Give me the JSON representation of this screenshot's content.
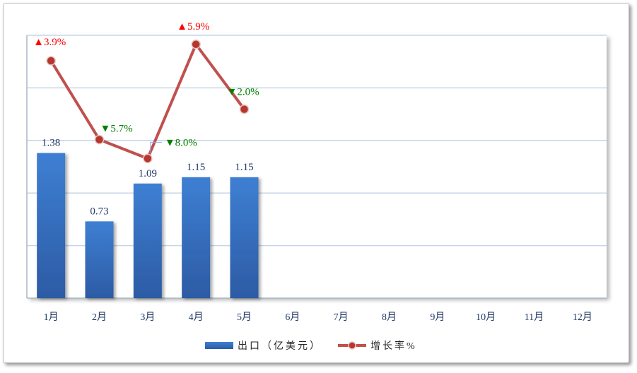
{
  "chart_data": {
    "type": "bar",
    "categories": [
      "1月",
      "2月",
      "3月",
      "4月",
      "5月",
      "6月",
      "7月",
      "8月",
      "9月",
      "10月",
      "11月",
      "12月"
    ],
    "series": [
      {
        "name": "出口（亿美元）",
        "values": [
          1.38,
          0.73,
          1.09,
          1.15,
          1.15,
          null,
          null,
          null,
          null,
          null,
          null,
          null
        ],
        "labels": [
          "1.38",
          "0.73",
          "1.09",
          "1.15",
          "1.15"
        ],
        "color": "#3a74c6"
      },
      {
        "name": "增长率%",
        "type": "line",
        "secondary_axis": true,
        "values": [
          3.9,
          -5.7,
          -8.0,
          5.9,
          -2.0,
          null,
          null,
          null,
          null,
          null,
          null,
          null
        ],
        "labels": [
          "▲3.9%",
          "▼5.7%",
          "▼8.0%",
          "▲5.9%",
          "▼2.0%"
        ],
        "color": "#c0504d"
      }
    ],
    "ylim": [
      0,
      2.5
    ],
    "y2lim": [
      -25,
      7
    ],
    "grid": true,
    "legend": "bottom",
    "label_colors": {
      "up": "#ff0000",
      "down": "#008000"
    }
  }
}
